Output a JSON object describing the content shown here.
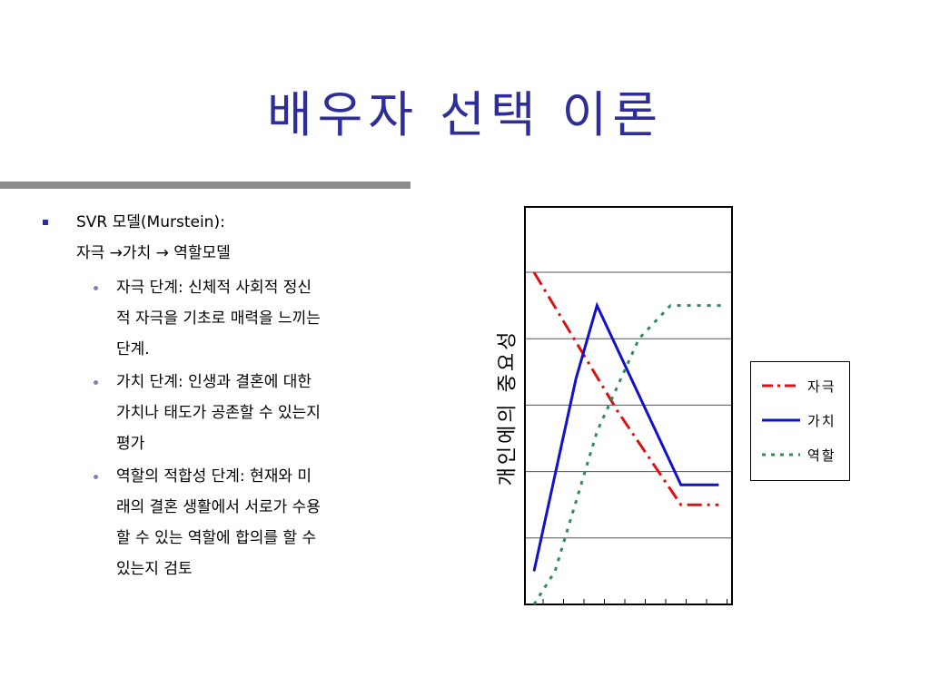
{
  "slide": {
    "title": "배우자 선택 이론"
  },
  "content": {
    "main_bullet": "SVR 모델(Murstein):",
    "subheading": "자극 →가치 → 역할모델",
    "sub_bullets": [
      {
        "lines": [
          "자극 단계: 신체적 사회적 정신",
          "적 자극을 기초로 매력을 느끼는",
          "단계."
        ]
      },
      {
        "lines": [
          "가치 단계: 인생과 결혼에 대한",
          "가치나 태도가 공존할 수 있는지",
          "평가"
        ]
      },
      {
        "lines": [
          "역할의 적합성 단계: 현재와 미",
          "래의 결혼 생활에서 서로가 수용",
          "할 수 있는 역할에 합의를 할 수",
          "있는지 검토"
        ]
      }
    ],
    "colors": {
      "title": "#2e2e9a",
      "bullet": "#2e2e9a",
      "sub_bullet": "#8080c0",
      "rule": "#8c8c8c"
    }
  },
  "chart_data": {
    "type": "line",
    "ylabel": "개인에의 중요성",
    "xlabel": "",
    "x": [
      0,
      1,
      2,
      3,
      4,
      5,
      6,
      7,
      8,
      9
    ],
    "ylim": [
      0,
      100
    ],
    "y_gridlines": [
      20,
      40,
      60,
      80
    ],
    "grid": true,
    "legend_position": "right",
    "series": [
      {
        "name": "자극",
        "color": "#dd1111",
        "dash": "dashdot",
        "points": [
          [
            0,
            100
          ],
          [
            4,
            58
          ],
          [
            7,
            30
          ],
          [
            7.2,
            30
          ],
          [
            8.8,
            30
          ]
        ]
      },
      {
        "name": "가치",
        "color": "#1111cc",
        "dash": "solid",
        "points": [
          [
            0,
            10
          ],
          [
            2,
            68
          ],
          [
            3,
            90
          ],
          [
            7,
            36
          ],
          [
            8.8,
            36
          ]
        ]
      },
      {
        "name": "역할",
        "color": "#2e8b57",
        "dash": "dotted",
        "points": [
          [
            0,
            0
          ],
          [
            1,
            10
          ],
          [
            3,
            52
          ],
          [
            5,
            80
          ],
          [
            6.5,
            90
          ],
          [
            9,
            90
          ]
        ]
      }
    ]
  }
}
